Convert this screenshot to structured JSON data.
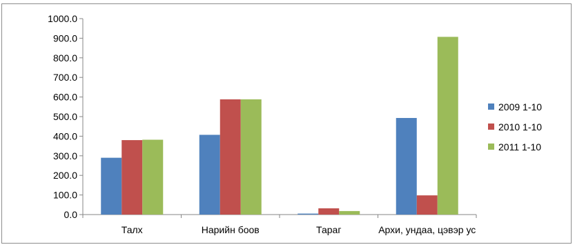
{
  "chart_data": {
    "type": "bar",
    "categories": [
      "Талх",
      "Нарийн боов",
      "Тараг",
      "Архи, ундаа, цэвэр ус"
    ],
    "series": [
      {
        "name": "2009 1-10",
        "color": "#4f81bd",
        "values": [
          290,
          407,
          5,
          493
        ]
      },
      {
        "name": "2010 1-10",
        "color": "#c0504d",
        "values": [
          380,
          588,
          32,
          98
        ]
      },
      {
        "name": "2011 1-10",
        "color": "#9bbb59",
        "values": [
          382,
          588,
          18,
          907
        ]
      }
    ],
    "ylim": [
      0,
      1000
    ],
    "yticks": [
      "0.0",
      "100.0",
      "200.0",
      "300.0",
      "400.0",
      "500.0",
      "600.0",
      "700.0",
      "800.0",
      "900.0",
      "1000.0"
    ],
    "grid": false,
    "legend_position": "right"
  }
}
